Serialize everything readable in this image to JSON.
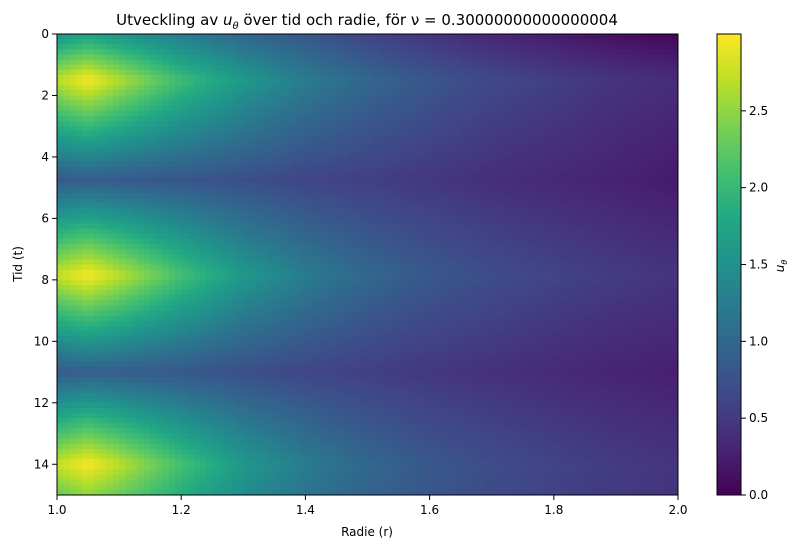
{
  "chart_data": {
    "type": "heatmap",
    "title_prefix": "Utveckling av ",
    "title_var": "u",
    "title_sub": "θ",
    "title_suffix": " över tid och radie, för ν = 0.30000000000000004",
    "xlabel": "Radie (r)",
    "ylabel": "Tid (t)",
    "colorbar_label": "u",
    "colorbar_label_sub": "θ",
    "colormap": "viridis",
    "xlim": [
      1.0,
      2.0
    ],
    "ylim": [
      0,
      15
    ],
    "y_inverted": true,
    "x_ticks": [
      1.0,
      1.2,
      1.4,
      1.6,
      1.8,
      2.0
    ],
    "x_tick_labels": [
      "1.0",
      "1.2",
      "1.4",
      "1.6",
      "1.8",
      "2.0"
    ],
    "y_ticks": [
      0,
      2,
      4,
      6,
      8,
      10,
      12,
      14
    ],
    "y_tick_labels": [
      "0",
      "2",
      "4",
      "6",
      "8",
      "10",
      "12",
      "14"
    ],
    "colorbar_range": [
      0.0,
      3.0
    ],
    "colorbar_ticks": [
      0.0,
      0.5,
      1.0,
      1.5,
      2.0,
      2.5
    ],
    "colorbar_tick_labels": [
      "0.0",
      "0.5",
      "1.0",
      "1.5",
      "2.0",
      "2.5"
    ],
    "r_samples": [
      1.0,
      1.05,
      1.1,
      1.2,
      1.3,
      1.4,
      1.5,
      1.6,
      1.7,
      1.8,
      1.9,
      2.0
    ],
    "t_samples": [
      0,
      1.5,
      4.75,
      7.85,
      11.0,
      14.0,
      15.0
    ],
    "values": [
      [
        1.55,
        1.7,
        1.55,
        1.25,
        1.0,
        0.8,
        0.6,
        0.45,
        0.32,
        0.22,
        0.12,
        0.05
      ],
      [
        2.7,
        2.98,
        2.65,
        2.05,
        1.6,
        1.25,
        1.0,
        0.8,
        0.65,
        0.55,
        0.45,
        0.38
      ],
      [
        0.85,
        0.88,
        0.85,
        0.8,
        0.72,
        0.62,
        0.55,
        0.48,
        0.4,
        0.34,
        0.28,
        0.22
      ],
      [
        2.75,
        2.98,
        2.7,
        2.1,
        1.6,
        1.25,
        1.0,
        0.82,
        0.7,
        0.6,
        0.52,
        0.45
      ],
      [
        0.85,
        0.9,
        0.88,
        0.82,
        0.72,
        0.63,
        0.55,
        0.48,
        0.42,
        0.36,
        0.3,
        0.26
      ],
      [
        2.75,
        2.98,
        2.7,
        2.1,
        1.6,
        1.25,
        1.0,
        0.82,
        0.7,
        0.6,
        0.52,
        0.46
      ],
      [
        2.3,
        2.5,
        2.3,
        1.85,
        1.45,
        1.15,
        0.95,
        0.8,
        0.68,
        0.58,
        0.5,
        0.44
      ]
    ]
  }
}
